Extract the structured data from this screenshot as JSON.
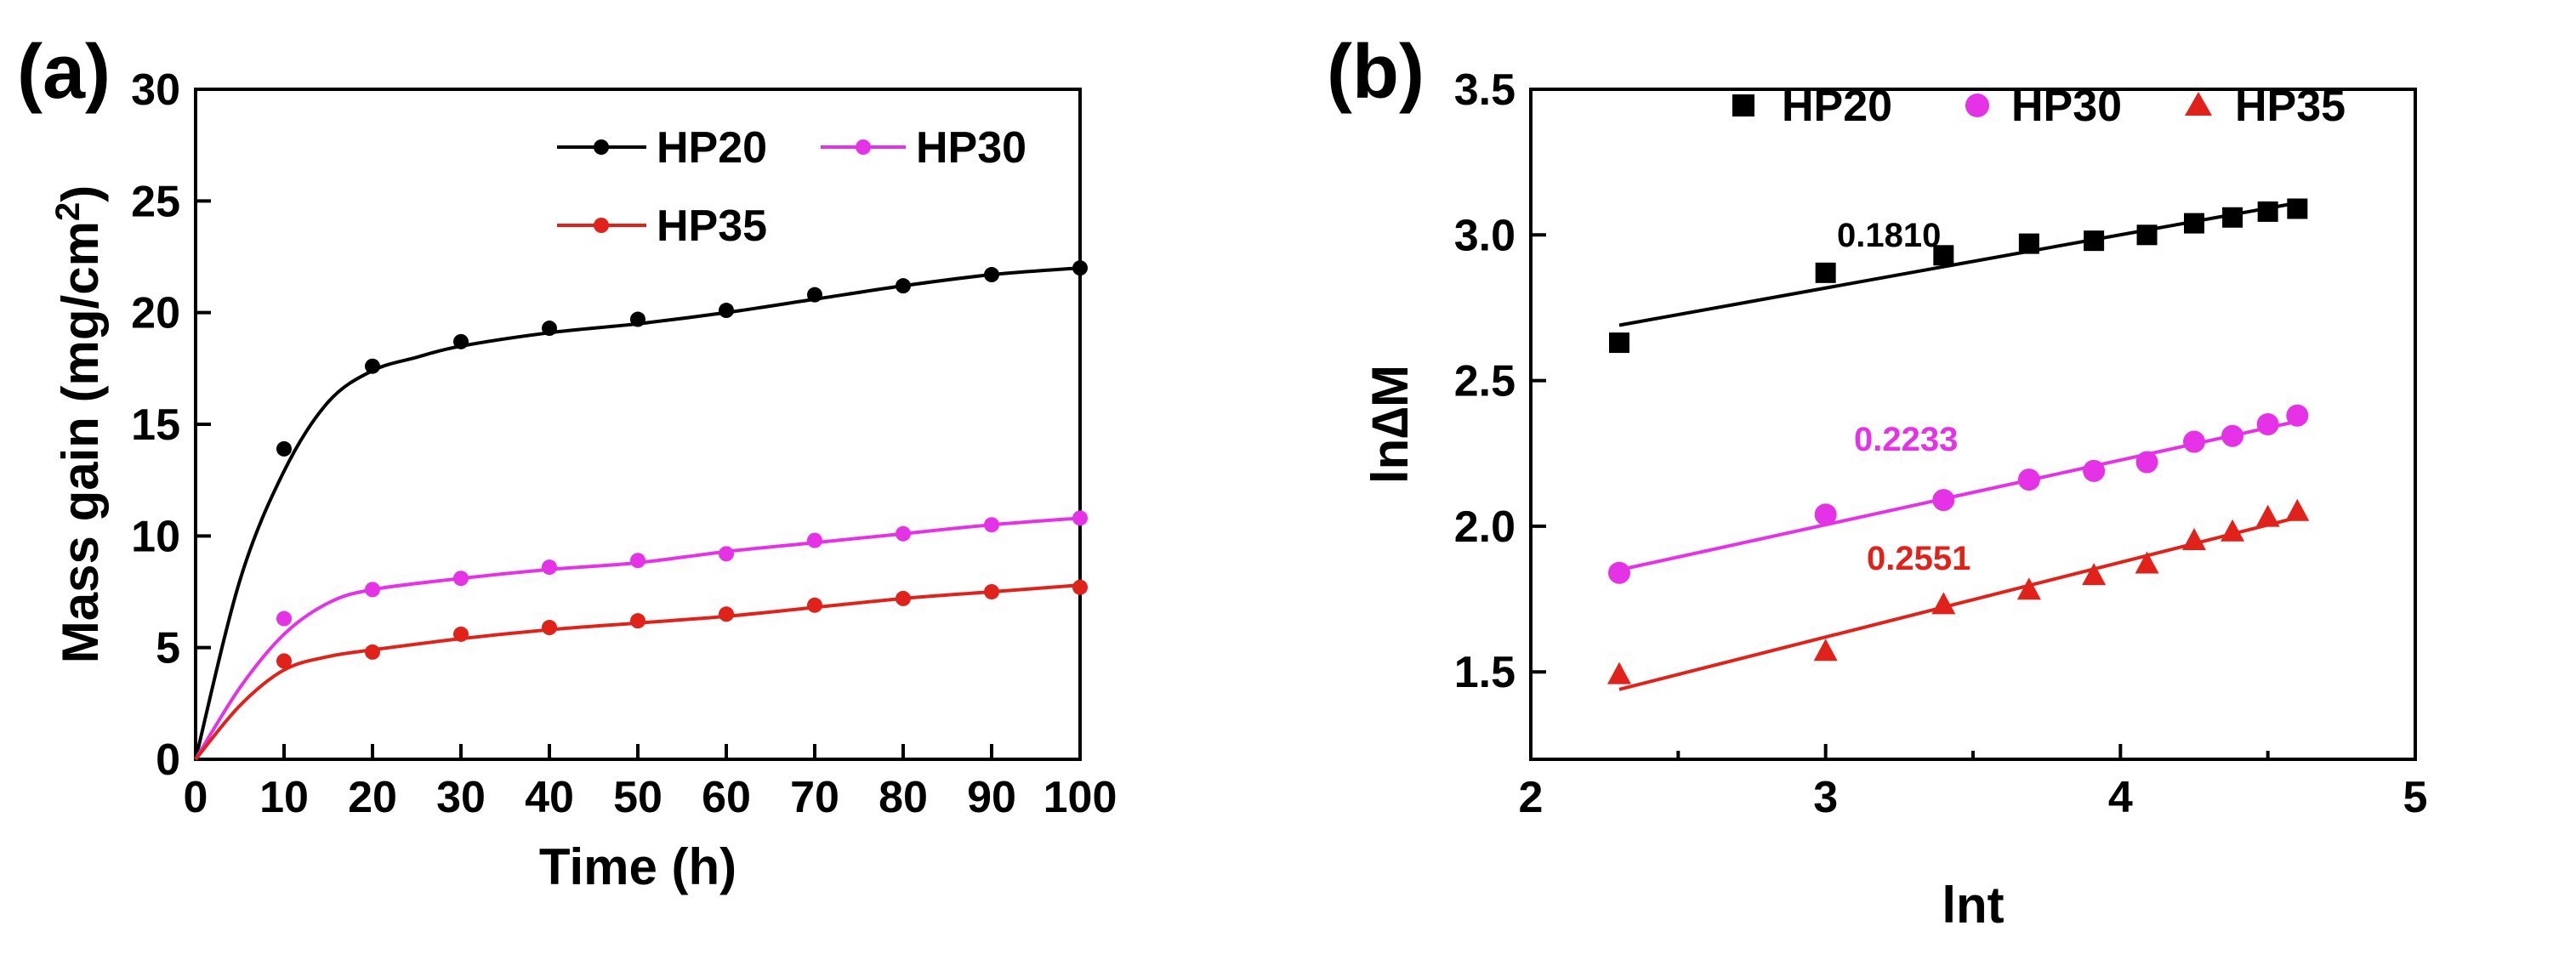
{
  "chart_data": [
    {
      "panel_label": "(a)",
      "type": "line",
      "xlabel": "Time (h)",
      "ylabel_main": "Mass gain (mg/cm",
      "ylabel_sup": "2",
      "ylabel_end": ")",
      "xlim": [
        0,
        100
      ],
      "ylim": [
        0,
        30
      ],
      "xticks": [
        0,
        10,
        20,
        30,
        40,
        50,
        60,
        70,
        80,
        90,
        100
      ],
      "yticks": [
        0,
        5,
        10,
        15,
        20,
        25,
        30
      ],
      "x": [
        10,
        20,
        30,
        40,
        50,
        60,
        70,
        80,
        90,
        100
      ],
      "series": [
        {
          "name": "HP20",
          "color": "#000000",
          "values": [
            13.9,
            17.6,
            18.7,
            19.3,
            19.7,
            20.1,
            20.8,
            21.2,
            21.7,
            22.0
          ],
          "fit": [
            [
              0,
              0
            ],
            [
              5,
              8.0
            ],
            [
              10,
              12.9
            ],
            [
              15,
              16.0
            ],
            [
              20,
              17.4
            ],
            [
              25,
              18.0
            ],
            [
              30,
              18.5
            ],
            [
              40,
              19.1
            ],
            [
              50,
              19.5
            ],
            [
              60,
              20.0
            ],
            [
              70,
              20.6
            ],
            [
              80,
              21.2
            ],
            [
              90,
              21.7
            ],
            [
              100,
              22.0
            ]
          ]
        },
        {
          "name": "HP30",
          "color": "#e632e6",
          "values": [
            6.3,
            7.6,
            8.1,
            8.6,
            8.9,
            9.2,
            9.8,
            10.1,
            10.5,
            10.8
          ],
          "fit": [
            [
              0,
              0
            ],
            [
              5,
              3.2
            ],
            [
              10,
              5.6
            ],
            [
              15,
              7.0
            ],
            [
              20,
              7.6
            ],
            [
              30,
              8.1
            ],
            [
              40,
              8.5
            ],
            [
              50,
              8.8
            ],
            [
              60,
              9.3
            ],
            [
              70,
              9.7
            ],
            [
              80,
              10.1
            ],
            [
              90,
              10.5
            ],
            [
              100,
              10.8
            ]
          ]
        },
        {
          "name": "HP35",
          "color": "#e0221b",
          "values": [
            4.4,
            4.8,
            5.6,
            5.9,
            6.2,
            6.5,
            6.9,
            7.2,
            7.5,
            7.7
          ],
          "fit": [
            [
              0,
              0
            ],
            [
              5,
              2.4
            ],
            [
              10,
              4.0
            ],
            [
              15,
              4.6
            ],
            [
              20,
              4.9
            ],
            [
              30,
              5.4
            ],
            [
              40,
              5.8
            ],
            [
              50,
              6.1
            ],
            [
              60,
              6.4
            ],
            [
              70,
              6.8
            ],
            [
              80,
              7.2
            ],
            [
              90,
              7.5
            ],
            [
              100,
              7.8
            ]
          ]
        }
      ],
      "legend": [
        "HP20",
        "HP30",
        "HP35"
      ]
    },
    {
      "panel_label": "(b)",
      "type": "scatter",
      "xlabel": "lnt",
      "ylabel": "ln∆M",
      "xlim": [
        2,
        5
      ],
      "ylim": [
        1.2,
        3.5
      ],
      "xticks": [
        2,
        3,
        4,
        5
      ],
      "yticks": [
        1.5,
        2.0,
        2.5,
        3.0,
        3.5
      ],
      "ytick_labels": [
        "1.5",
        "2.0",
        "2.5",
        "3.0",
        "3.5"
      ],
      "x": [
        2.3,
        3.0,
        3.4,
        3.69,
        3.91,
        4.09,
        4.25,
        4.38,
        4.5,
        4.6
      ],
      "series": [
        {
          "name": "HP20",
          "color": "#000000",
          "marker": "square",
          "values": [
            2.63,
            2.87,
            2.93,
            2.97,
            2.98,
            3.0,
            3.04,
            3.06,
            3.08,
            3.09
          ],
          "fit": [
            [
              2.3,
              2.69
            ],
            [
              4.6,
              3.11
            ]
          ],
          "slope_label": "0.1810",
          "label_color": "#000000"
        },
        {
          "name": "HP30",
          "color": "#e632e6",
          "marker": "circle",
          "values": [
            1.84,
            2.04,
            2.09,
            2.16,
            2.19,
            2.22,
            2.29,
            2.31,
            2.35,
            2.38
          ],
          "fit": [
            [
              2.3,
              1.85
            ],
            [
              4.6,
              2.36
            ]
          ],
          "slope_label": "0.2233",
          "label_color": "#e632e6"
        },
        {
          "name": "HP35",
          "color": "#e0221b",
          "marker": "triangle",
          "values": [
            1.49,
            1.57,
            1.73,
            1.78,
            1.83,
            1.87,
            1.95,
            1.98,
            2.03,
            2.05
          ],
          "fit": [
            [
              2.3,
              1.44
            ],
            [
              4.6,
              2.03
            ]
          ],
          "slope_label": "0.2551",
          "label_color": "#e0221b"
        }
      ],
      "legend": [
        "HP20",
        "HP30",
        "HP35"
      ]
    }
  ]
}
